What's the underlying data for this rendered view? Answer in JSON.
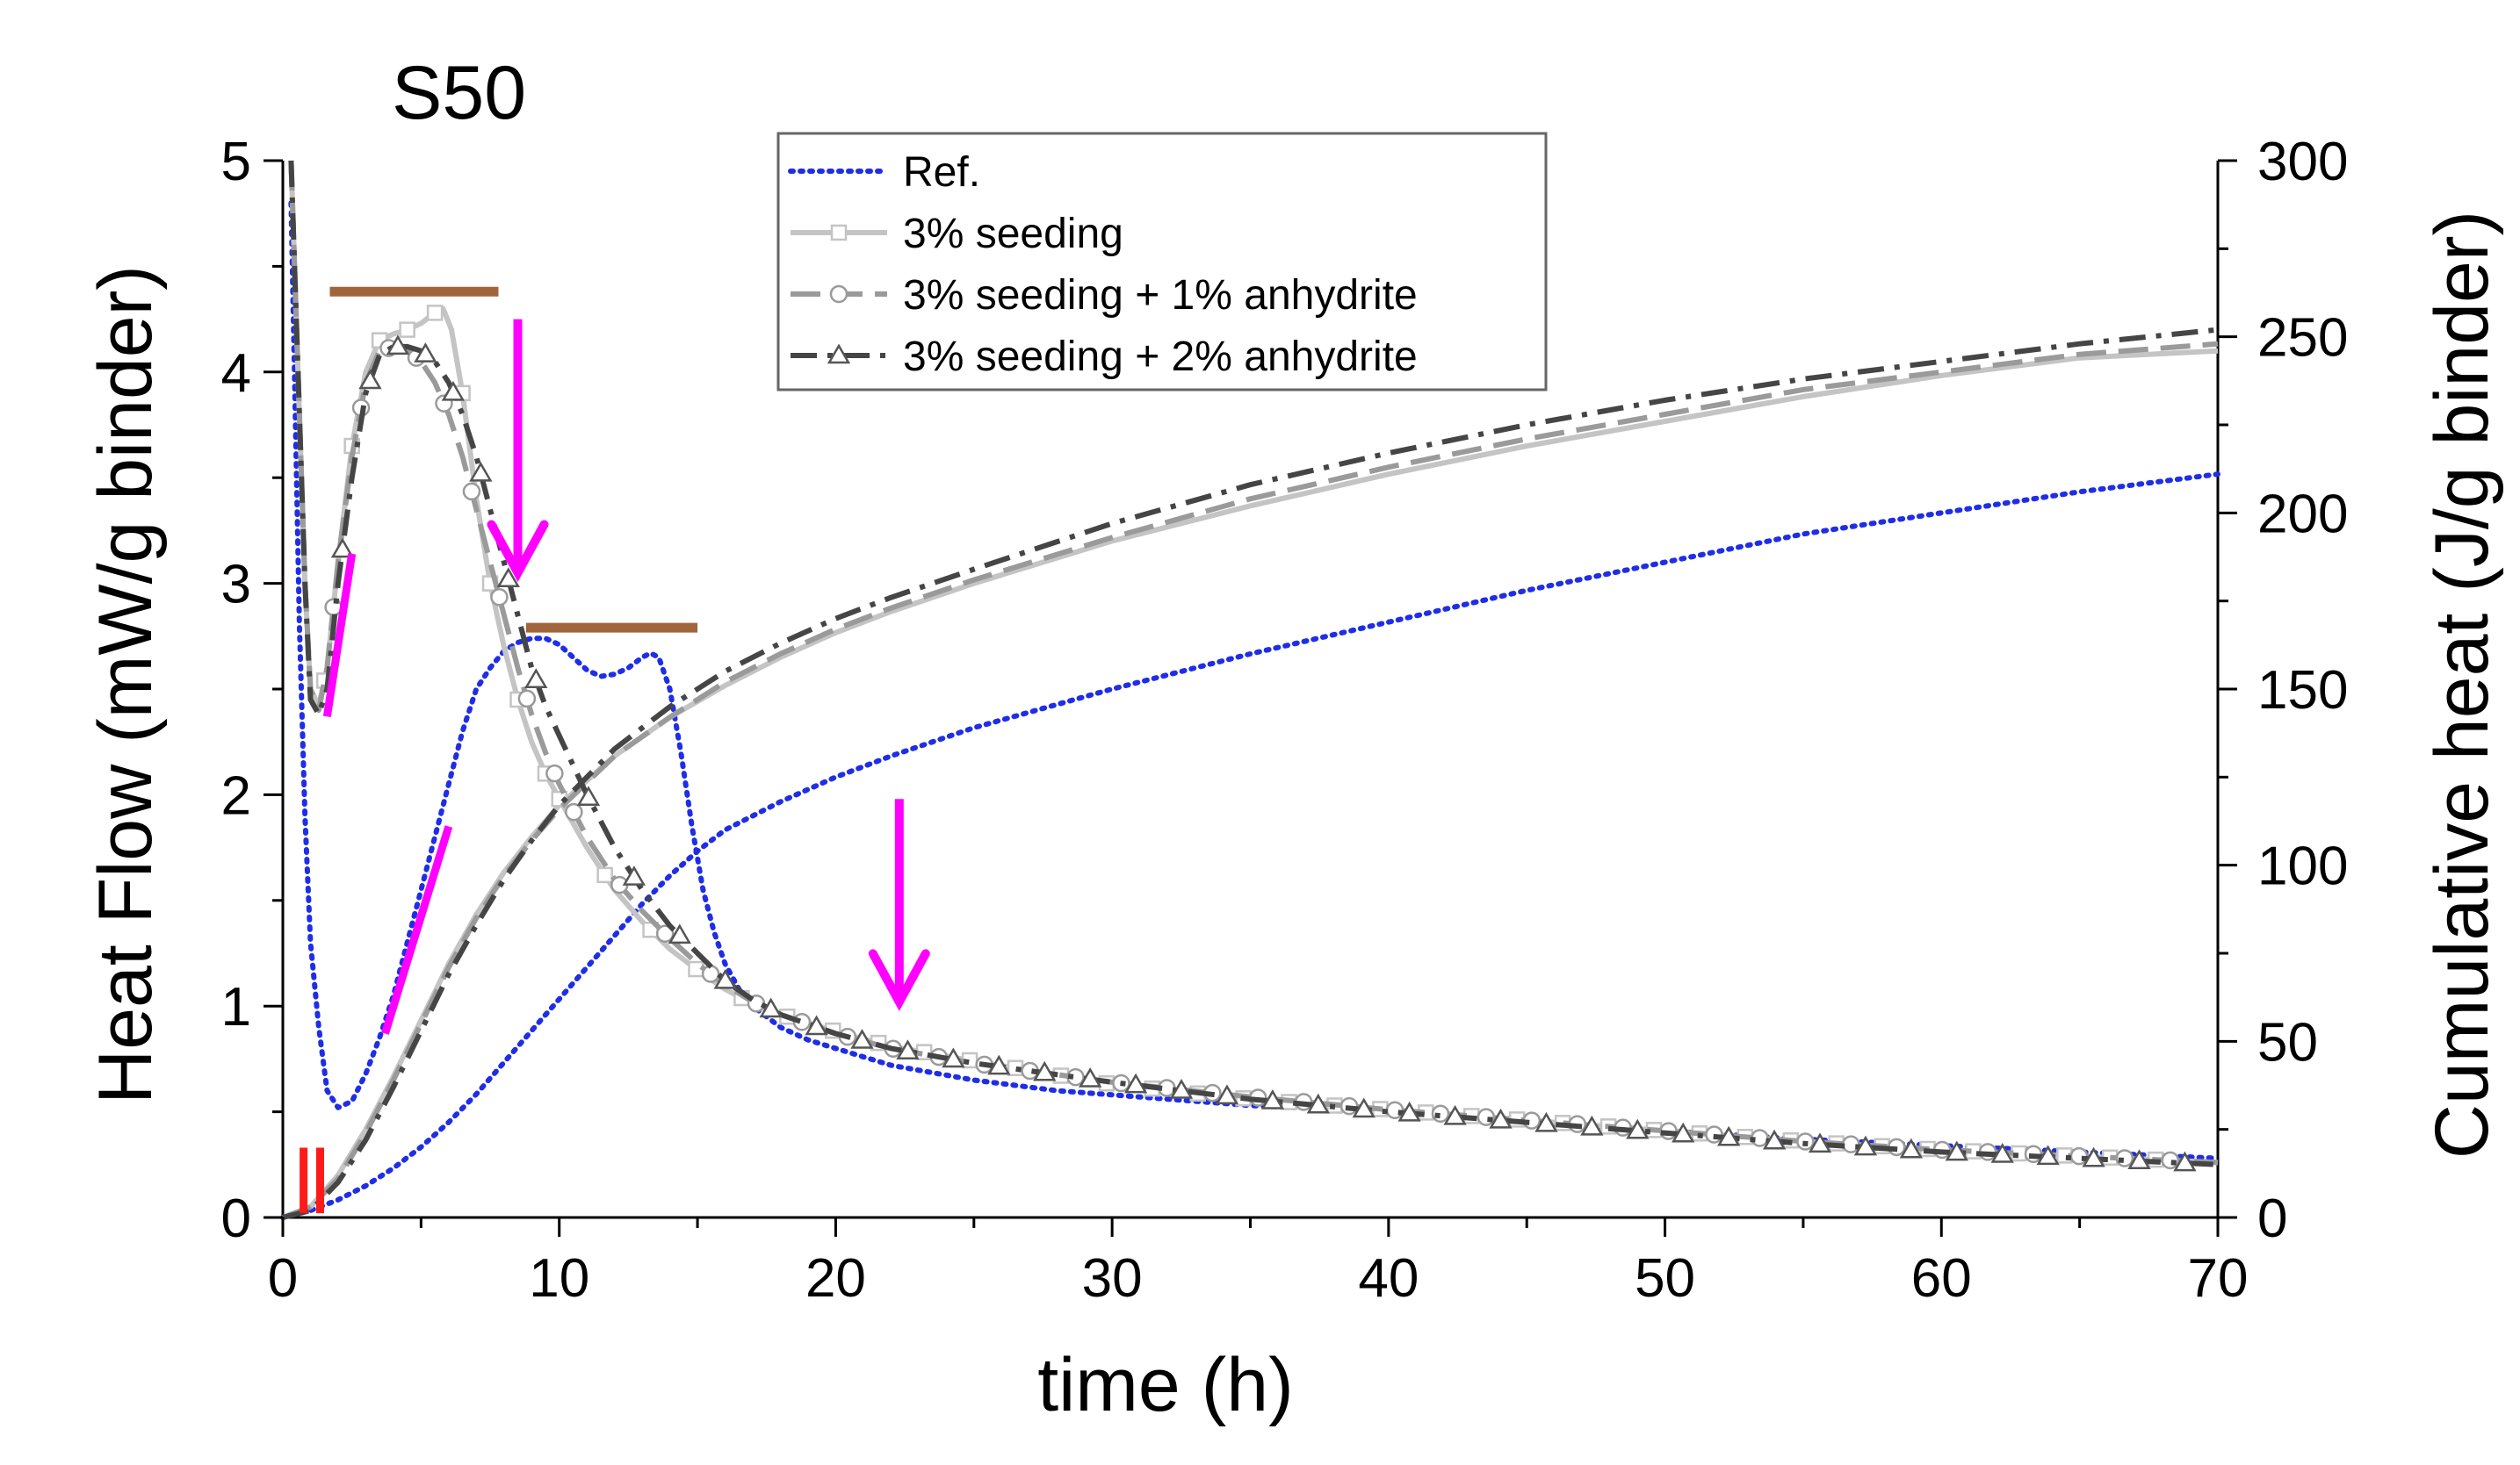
{
  "chart_data": {
    "type": "line",
    "title": "S50",
    "xlabel": "time (h)",
    "ylabel": "Heat Flow (mW/g binder)",
    "y2label": "Cumulative heat (J/g binder)",
    "xlim": [
      0,
      70
    ],
    "ylim": [
      0,
      5
    ],
    "y2lim": [
      0,
      300
    ],
    "xticks": [
      0,
      10,
      20,
      30,
      40,
      50,
      60,
      70
    ],
    "yticks": [
      0,
      1,
      2,
      3,
      4,
      5
    ],
    "y2ticks": [
      0,
      50,
      100,
      150,
      200,
      250,
      300
    ],
    "legend_position": "top-center",
    "series": [
      {
        "name": "Ref.",
        "color": "#1f2ee6",
        "style": "dotted",
        "marker": "none",
        "heat_flow": {
          "x": [
            0.3,
            0.45,
            0.6,
            0.8,
            1,
            1.3,
            1.6,
            2,
            2.5,
            3,
            3.5,
            4,
            4.5,
            5,
            5.5,
            6,
            6.5,
            7,
            7.5,
            8,
            8.5,
            9,
            9.5,
            10,
            10.5,
            11,
            11.5,
            12,
            12.5,
            13,
            13.3,
            13.6,
            14,
            14.4,
            14.8,
            15.2,
            15.6,
            16,
            16.5,
            17,
            18,
            19,
            20,
            22,
            25,
            28,
            30,
            35,
            40,
            45,
            50,
            55,
            60,
            65,
            70
          ],
          "y": [
            4.8,
            3.8,
            2.8,
            1.9,
            1.3,
            0.9,
            0.6,
            0.52,
            0.55,
            0.68,
            0.85,
            1.05,
            1.3,
            1.55,
            1.8,
            2.05,
            2.3,
            2.5,
            2.6,
            2.68,
            2.72,
            2.74,
            2.74,
            2.71,
            2.65,
            2.59,
            2.56,
            2.57,
            2.6,
            2.65,
            2.67,
            2.65,
            2.5,
            2.2,
            1.85,
            1.55,
            1.35,
            1.2,
            1.08,
            1.0,
            0.9,
            0.84,
            0.8,
            0.72,
            0.65,
            0.6,
            0.58,
            0.53,
            0.5,
            0.45,
            0.41,
            0.37,
            0.34,
            0.31,
            0.28
          ]
        },
        "cumulative_heat": {
          "x": [
            0,
            1,
            2,
            3,
            4,
            5,
            6,
            7,
            8,
            9,
            10,
            11,
            12,
            13,
            14,
            15,
            16,
            18,
            20,
            22,
            25,
            30,
            35,
            40,
            45,
            50,
            55,
            60,
            65,
            70
          ],
          "y": [
            0,
            2,
            5,
            9,
            14,
            20,
            27,
            35,
            44,
            53,
            62,
            71,
            80,
            89,
            97,
            104,
            110,
            118,
            125,
            131,
            139,
            150,
            160,
            169,
            178,
            186,
            194,
            200,
            206,
            211
          ]
        }
      },
      {
        "name": "3% seeding",
        "color": "#c4c4c4",
        "style": "solid",
        "marker": "square",
        "heat_flow": {
          "x": [
            0.3,
            0.5,
            0.8,
            1,
            1.3,
            1.6,
            2,
            2.5,
            3,
            3.5,
            4,
            4.5,
            5,
            5.5,
            5.8,
            6.1,
            6.5,
            7,
            7.5,
            8,
            8.5,
            9,
            9.5,
            10,
            11,
            12,
            13,
            14,
            15,
            16,
            17,
            18,
            20,
            22,
            25,
            30,
            35,
            40,
            45,
            50,
            55,
            60,
            65,
            70
          ],
          "y": [
            5.0,
            4.2,
            3.0,
            2.5,
            2.42,
            2.6,
            3.1,
            3.65,
            4.0,
            4.15,
            4.18,
            4.2,
            4.23,
            4.28,
            4.3,
            4.2,
            3.9,
            3.4,
            3.0,
            2.7,
            2.45,
            2.25,
            2.1,
            1.98,
            1.75,
            1.55,
            1.4,
            1.27,
            1.17,
            1.08,
            1.01,
            0.96,
            0.88,
            0.81,
            0.74,
            0.63,
            0.56,
            0.51,
            0.46,
            0.41,
            0.36,
            0.32,
            0.29,
            0.26
          ]
        },
        "cumulative_heat": {
          "x": [
            0,
            1,
            2,
            3,
            4,
            5,
            6,
            7,
            8,
            9,
            10,
            12,
            14,
            16,
            18,
            20,
            22,
            25,
            30,
            35,
            40,
            45,
            50,
            55,
            60,
            65,
            70
          ],
          "y": [
            0,
            3,
            12,
            25,
            40,
            56,
            72,
            86,
            98,
            108,
            117,
            131,
            142,
            151,
            159,
            166,
            172,
            180,
            192,
            202,
            211,
            219,
            226,
            233,
            239,
            244,
            246
          ]
        }
      },
      {
        "name": "3% seeding + 1% anhydrite",
        "color": "#9a9a9a",
        "style": "dashed",
        "marker": "circle",
        "heat_flow": {
          "x": [
            0.3,
            0.5,
            0.8,
            1,
            1.3,
            1.6,
            2,
            2.5,
            3,
            3.5,
            4,
            4.5,
            5,
            5.5,
            6,
            6.5,
            7,
            7.5,
            8,
            8.5,
            9,
            9.5,
            10,
            11,
            12,
            13,
            14,
            15,
            16,
            17,
            18,
            20,
            22,
            25,
            30,
            35,
            40,
            45,
            50,
            55,
            60,
            65,
            70
          ],
          "y": [
            5.0,
            4.2,
            3.0,
            2.5,
            2.4,
            2.6,
            3.1,
            3.6,
            3.95,
            4.1,
            4.12,
            4.1,
            4.05,
            3.95,
            3.8,
            3.6,
            3.35,
            3.1,
            2.85,
            2.6,
            2.38,
            2.2,
            2.05,
            1.8,
            1.6,
            1.45,
            1.32,
            1.2,
            1.1,
            1.02,
            0.96,
            0.87,
            0.8,
            0.73,
            0.64,
            0.57,
            0.51,
            0.46,
            0.41,
            0.36,
            0.32,
            0.29,
            0.26
          ]
        },
        "cumulative_heat": {
          "x": [
            0,
            1,
            2,
            3,
            4,
            5,
            6,
            7,
            8,
            9,
            10,
            12,
            14,
            16,
            18,
            20,
            22,
            25,
            30,
            35,
            40,
            45,
            50,
            55,
            60,
            65,
            70
          ],
          "y": [
            0,
            3,
            11,
            24,
            39,
            55,
            71,
            85,
            97,
            107,
            116,
            131,
            142,
            152,
            160,
            167,
            173,
            181,
            193,
            204,
            213,
            221,
            228,
            235,
            240,
            245,
            248
          ]
        }
      },
      {
        "name": "3% seeding + 2% anhydrite",
        "color": "#454545",
        "style": "dash-dot",
        "marker": "triangle",
        "heat_flow": {
          "x": [
            0.3,
            0.5,
            0.8,
            1,
            1.3,
            1.6,
            2,
            2.5,
            3,
            3.5,
            4,
            4.5,
            5,
            5.5,
            6,
            6.5,
            7,
            7.5,
            8,
            8.5,
            9,
            9.5,
            10,
            11,
            12,
            13,
            14,
            15,
            16,
            17,
            18,
            20,
            22,
            25,
            30,
            35,
            40,
            45,
            50,
            55,
            60,
            65,
            70
          ],
          "y": [
            5.0,
            4.2,
            3.0,
            2.45,
            2.38,
            2.5,
            3.0,
            3.5,
            3.9,
            4.08,
            4.12,
            4.12,
            4.1,
            4.05,
            3.95,
            3.8,
            3.6,
            3.35,
            3.1,
            2.85,
            2.6,
            2.42,
            2.28,
            2.0,
            1.75,
            1.55,
            1.38,
            1.25,
            1.12,
            1.03,
            0.96,
            0.87,
            0.8,
            0.73,
            0.64,
            0.56,
            0.5,
            0.45,
            0.4,
            0.35,
            0.31,
            0.28,
            0.25
          ]
        },
        "cumulative_heat": {
          "x": [
            0,
            1,
            2,
            3,
            4,
            5,
            6,
            7,
            8,
            9,
            10,
            12,
            14,
            16,
            18,
            20,
            22,
            25,
            30,
            35,
            40,
            45,
            50,
            55,
            60,
            65,
            70
          ],
          "y": [
            0,
            2,
            10,
            22,
            37,
            53,
            69,
            83,
            96,
            107,
            117,
            133,
            145,
            155,
            163,
            170,
            176,
            184,
            197,
            208,
            217,
            225,
            232,
            238,
            243,
            248,
            252
          ]
        }
      }
    ],
    "annotations": [
      {
        "kind": "bar",
        "color": "#a0653a",
        "x": [
          1.7,
          7.8
        ],
        "y": 4.38
      },
      {
        "kind": "bar",
        "color": "#a0653a",
        "x": [
          8.8,
          15.0
        ],
        "y": 2.79
      },
      {
        "kind": "slope",
        "color": "#ff00ff",
        "x": [
          1.6,
          2.5
        ],
        "y": [
          2.37,
          3.14
        ]
      },
      {
        "kind": "slope",
        "color": "#ff00ff",
        "x": [
          3.7,
          6.0
        ],
        "y": [
          0.87,
          1.85
        ]
      },
      {
        "kind": "arrow",
        "color": "#ff00ff",
        "x": 8.5,
        "y": [
          4.25,
          3.05
        ]
      },
      {
        "kind": "arrow",
        "color": "#ff00ff",
        "x": 22.3,
        "y": [
          1.98,
          1.02
        ]
      },
      {
        "kind": "mark",
        "color": "#ff1a1a",
        "x": 0.75,
        "y": [
          0.02,
          0.33
        ]
      },
      {
        "kind": "mark",
        "color": "#ff1a1a",
        "x": 1.35,
        "y": [
          0.02,
          0.33
        ]
      }
    ]
  }
}
